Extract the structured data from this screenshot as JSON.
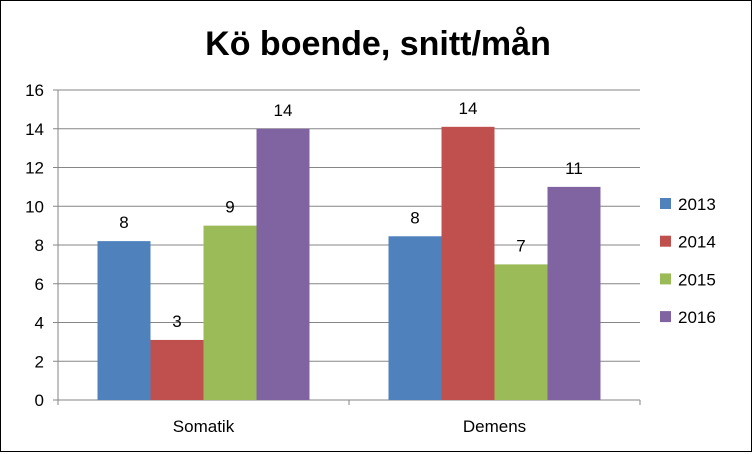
{
  "chart_data": {
    "type": "bar",
    "title": "Kö boende, snitt/mån",
    "categories": [
      "Somatik",
      "Demens"
    ],
    "series": [
      {
        "name": "2013",
        "values": [
          8.2,
          8.45
        ],
        "labels": [
          "8",
          "8"
        ],
        "color": "#4F81BD"
      },
      {
        "name": "2014",
        "values": [
          3.1,
          14.1
        ],
        "labels": [
          "3",
          "14"
        ],
        "color": "#C0504D"
      },
      {
        "name": "2015",
        "values": [
          9,
          7
        ],
        "labels": [
          "9",
          "7"
        ],
        "color": "#9BBB59"
      },
      {
        "name": "2016",
        "values": [
          14,
          11
        ],
        "labels": [
          "14",
          "11"
        ],
        "color": "#8064A2"
      }
    ],
    "ylim": [
      0,
      16
    ],
    "yticks": [
      "0",
      "2",
      "4",
      "6",
      "8",
      "10",
      "12",
      "14",
      "16"
    ],
    "grid": true,
    "legend": "right",
    "xlabel": "",
    "ylabel": ""
  }
}
